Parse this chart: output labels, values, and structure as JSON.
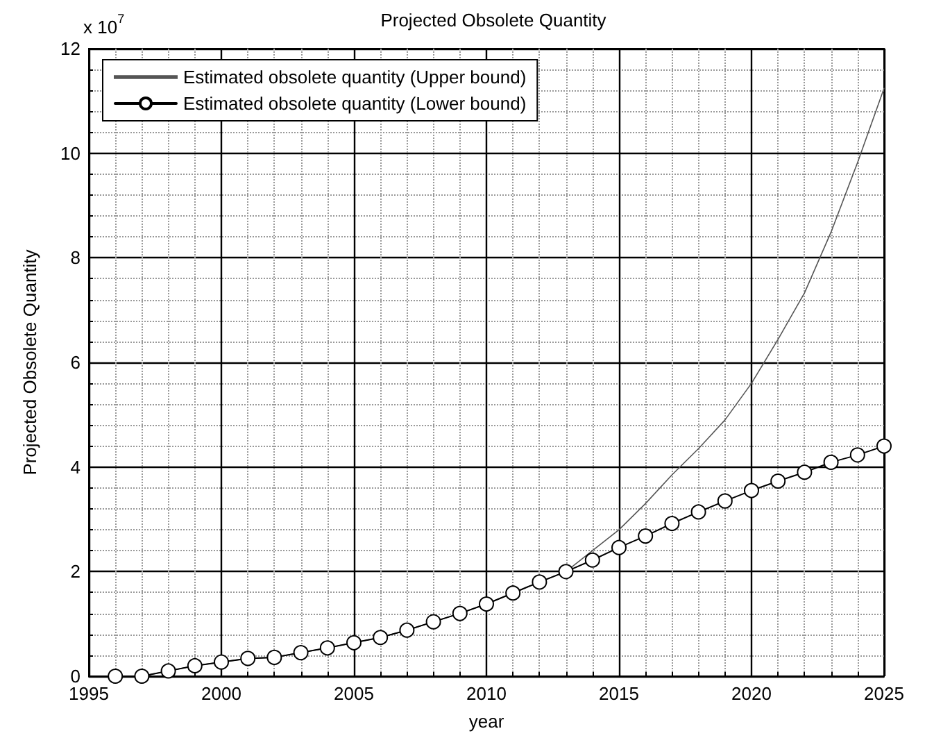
{
  "chart_data": {
    "type": "line",
    "title": "Projected Obsolete Quantity",
    "xlabel": "year",
    "ylabel": "Projected Obsolete Quantity",
    "annotations": [
      "x 10$^{7}$"
    ],
    "x": [
      1996,
      1997,
      1998,
      1999,
      2000,
      2001,
      2002,
      2003,
      2004,
      2005,
      2006,
      2007,
      2008,
      2009,
      2010,
      2011,
      2012,
      2013,
      2014,
      2015,
      2016,
      2017,
      2018,
      2019,
      2020,
      2021,
      2022,
      2023,
      2024,
      2025
    ],
    "series": [
      {
        "name": "Estimated obsolete quantity (Upper bound)",
        "color": "#555555",
        "marker": "none",
        "values": [
          0,
          0,
          0.1,
          0.2,
          0.27,
          0.34,
          0.36,
          0.45,
          0.54,
          0.64,
          0.74,
          0.88,
          1.04,
          1.2,
          1.38,
          1.59,
          1.8,
          2.0,
          2.4,
          2.8,
          3.3,
          3.85,
          4.35,
          4.9,
          5.6,
          6.44,
          7.33,
          8.49,
          9.82,
          11.24
        ]
      },
      {
        "name": "Estimated obsolete quantity (Lower bound)",
        "color": "#000000",
        "marker": "circle",
        "values": [
          0,
          0,
          0.1,
          0.2,
          0.27,
          0.34,
          0.36,
          0.45,
          0.54,
          0.64,
          0.74,
          0.88,
          1.04,
          1.2,
          1.38,
          1.59,
          1.8,
          2.0,
          2.22,
          2.46,
          2.68,
          2.92,
          3.14,
          3.35,
          3.55,
          3.73,
          3.9,
          4.09,
          4.23,
          4.4
        ]
      }
    ],
    "xlim": [
      1995,
      2025
    ],
    "xticks": [
      1995,
      2000,
      2005,
      2010,
      2015,
      2020,
      2025
    ],
    "ylim": [
      0,
      12
    ],
    "yticks": [
      0,
      2,
      4,
      6,
      8,
      10,
      12
    ],
    "grid": true,
    "legend": "top left",
    "line_style": "solid"
  }
}
